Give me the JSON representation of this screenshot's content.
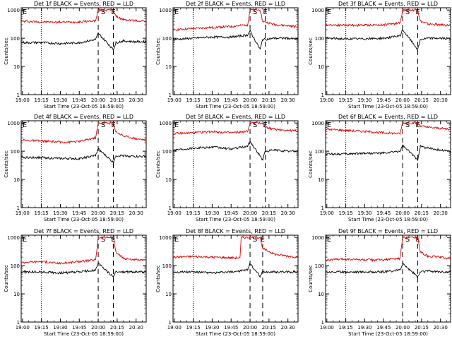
{
  "figure": {
    "common": {
      "xlabel": "Start Time (23-Oct-05 18:59:00)",
      "ylabel": "Counts/sec",
      "xticks": [
        "19:00",
        "19:15",
        "19:30",
        "19:45",
        "20:00",
        "20:15",
        "20:30"
      ],
      "yticks": [
        "1",
        "10",
        "100",
        "1000"
      ],
      "event_markers": [
        "E",
        "S",
        "E"
      ],
      "colors": {
        "events": "#000000",
        "lld": "#dd0000",
        "axes": "#000000",
        "background": "#ffffff"
      }
    }
  },
  "chart_data": [
    {
      "type": "line",
      "title": "Det 1f BLACK = Events, RED = LLD",
      "xlim": [
        "18:59",
        "20:38"
      ],
      "ylim": [
        1,
        1200
      ],
      "y_scale": "log",
      "x_dotted": "19:15",
      "x_dashed": [
        "20:00",
        "20:12"
      ],
      "series": [
        {
          "color": "red",
          "points": [
            [
              "18:59",
              400
            ],
            [
              "19:15",
              380
            ],
            [
              "19:30",
              370
            ],
            [
              "19:45",
              380
            ],
            [
              "19:58",
              420
            ],
            [
              "20:00",
              1000
            ],
            [
              "20:12",
              1000
            ],
            [
              "20:14",
              600
            ],
            [
              "20:20",
              450
            ],
            [
              "20:30",
              420
            ],
            [
              "20:38",
              400
            ]
          ]
        },
        {
          "color": "black",
          "points": [
            [
              "18:59",
              70
            ],
            [
              "19:15",
              70
            ],
            [
              "19:30",
              65
            ],
            [
              "19:45",
              70
            ],
            [
              "19:58",
              90
            ],
            [
              "20:00",
              150
            ],
            [
              "20:12",
              40
            ],
            [
              "20:14",
              70
            ],
            [
              "20:20",
              80
            ],
            [
              "20:30",
              75
            ],
            [
              "20:38",
              75
            ]
          ]
        }
      ]
    },
    {
      "type": "line",
      "title": "Det 2f BLACK = Events, RED = LLD",
      "xlim": [
        "18:59",
        "20:38"
      ],
      "ylim": [
        1,
        1200
      ],
      "y_scale": "log",
      "x_dotted": "19:15",
      "x_dashed": [
        "20:00",
        "20:12"
      ],
      "series": [
        {
          "color": "red",
          "points": [
            [
              "18:59",
              200
            ],
            [
              "19:15",
              220
            ],
            [
              "19:30",
              240
            ],
            [
              "19:45",
              260
            ],
            [
              "19:58",
              300
            ],
            [
              "20:00",
              1000
            ],
            [
              "20:08",
              1000
            ],
            [
              "20:10",
              400
            ],
            [
              "20:20",
              300
            ],
            [
              "20:30",
              280
            ],
            [
              "20:38",
              250
            ]
          ]
        },
        {
          "color": "black",
          "points": [
            [
              "18:59",
              90
            ],
            [
              "19:15",
              100
            ],
            [
              "19:30",
              110
            ],
            [
              "19:45",
              110
            ],
            [
              "19:58",
              130
            ],
            [
              "20:00",
              180
            ],
            [
              "20:08",
              40
            ],
            [
              "20:10",
              90
            ],
            [
              "20:20",
              100
            ],
            [
              "20:30",
              100
            ],
            [
              "20:38",
              90
            ]
          ]
        }
      ]
    },
    {
      "type": "line",
      "title": "Det 3f BLACK = Events, RED = LLD",
      "xlim": [
        "18:59",
        "20:38"
      ],
      "ylim": [
        1,
        1200
      ],
      "y_scale": "log",
      "x_dotted": "19:15",
      "x_dashed": [
        "20:00",
        "20:12"
      ],
      "series": [
        {
          "color": "red",
          "points": [
            [
              "18:59",
              300
            ],
            [
              "19:15",
              290
            ],
            [
              "19:30",
              290
            ],
            [
              "19:45",
              300
            ],
            [
              "19:58",
              350
            ],
            [
              "20:00",
              1000
            ],
            [
              "20:12",
              1000
            ],
            [
              "20:14",
              400
            ],
            [
              "20:20",
              320
            ],
            [
              "20:30",
              300
            ],
            [
              "20:38",
              280
            ]
          ]
        },
        {
          "color": "black",
          "points": [
            [
              "18:59",
              100
            ],
            [
              "19:15",
              95
            ],
            [
              "19:30",
              95
            ],
            [
              "19:45",
              100
            ],
            [
              "19:58",
              120
            ],
            [
              "20:00",
              200
            ],
            [
              "20:12",
              40
            ],
            [
              "20:14",
              90
            ],
            [
              "20:20",
              100
            ],
            [
              "20:30",
              100
            ],
            [
              "20:38",
              95
            ]
          ]
        }
      ]
    },
    {
      "type": "line",
      "title": "Det 4f BLACK = Events, RED = LLD",
      "xlim": [
        "18:59",
        "20:38"
      ],
      "ylim": [
        1,
        1200
      ],
      "y_scale": "log",
      "x_dotted": "19:15",
      "x_dashed": [
        "20:00",
        "20:12"
      ],
      "series": [
        {
          "color": "red",
          "points": [
            [
              "18:59",
              250
            ],
            [
              "19:15",
              230
            ],
            [
              "19:30",
              210
            ],
            [
              "19:45",
              220
            ],
            [
              "19:58",
              300
            ],
            [
              "20:00",
              1000
            ],
            [
              "20:12",
              1000
            ],
            [
              "20:14",
              500
            ],
            [
              "20:20",
              350
            ],
            [
              "20:30",
              280
            ],
            [
              "20:38",
              250
            ]
          ]
        },
        {
          "color": "black",
          "points": [
            [
              "18:59",
              60
            ],
            [
              "19:15",
              60
            ],
            [
              "19:30",
              55
            ],
            [
              "19:45",
              55
            ],
            [
              "19:58",
              70
            ],
            [
              "20:00",
              120
            ],
            [
              "20:12",
              40
            ],
            [
              "20:14",
              70
            ],
            [
              "20:20",
              70
            ],
            [
              "20:30",
              65
            ],
            [
              "20:38",
              65
            ]
          ]
        }
      ]
    },
    {
      "type": "line",
      "title": "Det 5f BLACK = Events, RED = LLD",
      "xlim": [
        "18:59",
        "20:38"
      ],
      "ylim": [
        1,
        1200
      ],
      "y_scale": "log",
      "x_dotted": "19:15",
      "x_dashed": [
        "20:00",
        "20:12"
      ],
      "series": [
        {
          "color": "red",
          "points": [
            [
              "18:59",
              420
            ],
            [
              "19:15",
              450
            ],
            [
              "19:30",
              500
            ],
            [
              "19:45",
              450
            ],
            [
              "19:58",
              500
            ],
            [
              "20:00",
              1000
            ],
            [
              "20:10",
              1000
            ],
            [
              "20:12",
              700
            ],
            [
              "20:20",
              600
            ],
            [
              "20:30",
              550
            ],
            [
              "20:38",
              520
            ]
          ]
        },
        {
          "color": "black",
          "points": [
            [
              "18:59",
              110
            ],
            [
              "19:15",
              130
            ],
            [
              "19:30",
              140
            ],
            [
              "19:45",
              120
            ],
            [
              "19:58",
              150
            ],
            [
              "20:00",
              220
            ],
            [
              "20:10",
              50
            ],
            [
              "20:12",
              100
            ],
            [
              "20:20",
              110
            ],
            [
              "20:30",
              100
            ],
            [
              "20:38",
              100
            ]
          ]
        }
      ]
    },
    {
      "type": "line",
      "title": "Det 6f BLACK = Events, RED = LLD",
      "xlim": [
        "18:59",
        "20:38"
      ],
      "ylim": [
        1,
        1200
      ],
      "y_scale": "log",
      "x_dotted": "19:15",
      "x_dashed": [
        "20:00",
        "20:12"
      ],
      "series": [
        {
          "color": "red",
          "points": [
            [
              "18:59",
              600
            ],
            [
              "19:15",
              550
            ],
            [
              "19:30",
              500
            ],
            [
              "19:45",
              450
            ],
            [
              "19:58",
              420
            ],
            [
              "20:00",
              1000
            ],
            [
              "20:12",
              1000
            ],
            [
              "20:14",
              800
            ],
            [
              "20:20",
              700
            ],
            [
              "20:30",
              650
            ],
            [
              "20:38",
              600
            ]
          ]
        },
        {
          "color": "black",
          "points": [
            [
              "18:59",
              80
            ],
            [
              "19:15",
              80
            ],
            [
              "19:30",
              85
            ],
            [
              "19:45",
              85
            ],
            [
              "19:58",
              100
            ],
            [
              "20:00",
              160
            ],
            [
              "20:12",
              50
            ],
            [
              "20:14",
              150
            ],
            [
              "20:20",
              130
            ],
            [
              "20:30",
              110
            ],
            [
              "20:38",
              100
            ]
          ]
        }
      ]
    },
    {
      "type": "line",
      "title": "Det 7f BLACK = Events, RED = LLD",
      "xlim": [
        "18:59",
        "20:38"
      ],
      "ylim": [
        1,
        1200
      ],
      "y_scale": "log",
      "x_dotted": "19:15",
      "x_dashed": [
        "20:00",
        "20:12"
      ],
      "series": [
        {
          "color": "red",
          "points": [
            [
              "18:59",
              130
            ],
            [
              "19:15",
              140
            ],
            [
              "19:30",
              120
            ],
            [
              "19:45",
              140
            ],
            [
              "19:58",
              160
            ],
            [
              "20:00",
              1000
            ],
            [
              "20:12",
              1000
            ],
            [
              "20:14",
              300
            ],
            [
              "20:20",
              180
            ],
            [
              "20:30",
              160
            ],
            [
              "20:38",
              150
            ]
          ]
        },
        {
          "color": "black",
          "points": [
            [
              "18:59",
              60
            ],
            [
              "19:15",
              60
            ],
            [
              "19:30",
              55
            ],
            [
              "19:45",
              60
            ],
            [
              "19:58",
              70
            ],
            [
              "20:00",
              120
            ],
            [
              "20:12",
              40
            ],
            [
              "20:14",
              60
            ],
            [
              "20:20",
              60
            ],
            [
              "20:30",
              60
            ],
            [
              "20:38",
              60
            ]
          ]
        }
      ]
    },
    {
      "type": "line",
      "title": "Det 8f BLACK = Events, RED = LLD",
      "xlim": [
        "18:59",
        "20:38"
      ],
      "ylim": [
        1,
        1200
      ],
      "y_scale": "log",
      "x_dotted": "19:15",
      "x_dashed": [
        "20:00",
        "20:10"
      ],
      "series": [
        {
          "color": "red",
          "points": [
            [
              "18:59",
              200
            ],
            [
              "19:15",
              210
            ],
            [
              "19:30",
              200
            ],
            [
              "19:45",
              190
            ],
            [
              "19:52",
              190
            ],
            [
              "19:53",
              1000
            ],
            [
              "20:08",
              1000
            ],
            [
              "20:10",
              400
            ],
            [
              "20:20",
              250
            ],
            [
              "20:30",
              220
            ],
            [
              "20:38",
              200
            ]
          ]
        },
        {
          "color": "black",
          "points": [
            [
              "18:59",
              60
            ],
            [
              "19:15",
              60
            ],
            [
              "19:30",
              55
            ],
            [
              "19:45",
              60
            ],
            [
              "19:58",
              70
            ],
            [
              "20:00",
              120
            ],
            [
              "20:08",
              40
            ],
            [
              "20:10",
              60
            ],
            [
              "20:20",
              60
            ],
            [
              "20:30",
              60
            ],
            [
              "20:38",
              60
            ]
          ]
        }
      ]
    },
    {
      "type": "line",
      "title": "Det 9f BLACK = Events, RED = LLD",
      "xlim": [
        "18:59",
        "20:38"
      ],
      "ylim": [
        1,
        1200
      ],
      "y_scale": "log",
      "x_dotted": "19:15",
      "x_dashed": [
        "20:00",
        "20:12"
      ],
      "series": [
        {
          "color": "red",
          "points": [
            [
              "18:59",
              160
            ],
            [
              "19:15",
              170
            ],
            [
              "19:30",
              160
            ],
            [
              "19:45",
              160
            ],
            [
              "19:58",
              180
            ],
            [
              "20:00",
              1000
            ],
            [
              "20:12",
              1000
            ],
            [
              "20:14",
              300
            ],
            [
              "20:20",
              220
            ],
            [
              "20:30",
              200
            ],
            [
              "20:38",
              180
            ]
          ]
        },
        {
          "color": "black",
          "points": [
            [
              "18:59",
              60
            ],
            [
              "19:15",
              60
            ],
            [
              "19:30",
              60
            ],
            [
              "19:45",
              60
            ],
            [
              "19:58",
              70
            ],
            [
              "20:00",
              120
            ],
            [
              "20:12",
              40
            ],
            [
              "20:14",
              60
            ],
            [
              "20:20",
              65
            ],
            [
              "20:30",
              60
            ],
            [
              "20:38",
              60
            ]
          ]
        }
      ]
    }
  ]
}
